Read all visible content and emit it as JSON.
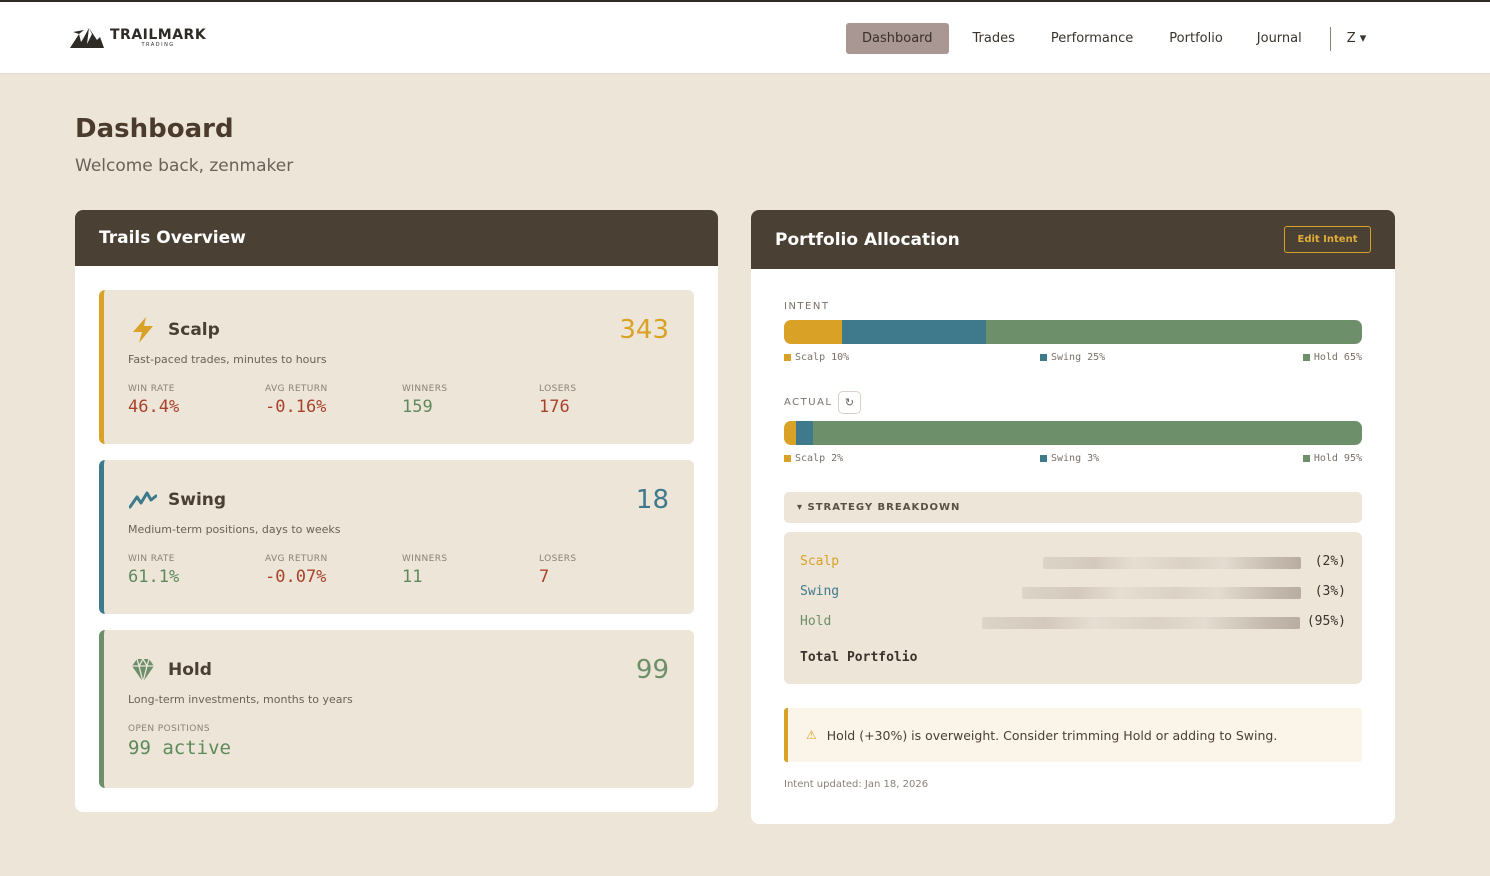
{
  "brand": {
    "name": "TRAILMARK",
    "sub": "TRADING"
  },
  "nav": {
    "items": [
      {
        "label": "Dashboard",
        "active": true
      },
      {
        "label": "Trades"
      },
      {
        "label": "Performance"
      },
      {
        "label": "Portfolio"
      },
      {
        "label": "Journal"
      }
    ],
    "user_label": "Z ▾"
  },
  "page": {
    "title": "Dashboard",
    "welcome": "Welcome back, zenmaker"
  },
  "trails": {
    "title": "Trails Overview",
    "scalp": {
      "name": "Scalp",
      "count": "343",
      "desc": "Fast-paced trades, minutes to hours",
      "win_rate_label": "WIN RATE",
      "win_rate": "46.4%",
      "avg_return_label": "AVG RETURN",
      "avg_return": "-0.16%",
      "winners_label": "WINNERS",
      "winners": "159",
      "losers_label": "LOSERS",
      "losers": "176",
      "icon": "lightning-icon",
      "color": "#d9a126"
    },
    "swing": {
      "name": "Swing",
      "count": "18",
      "desc": "Medium-term positions, days to weeks",
      "win_rate_label": "WIN RATE",
      "win_rate": "61.1%",
      "avg_return_label": "AVG RETURN",
      "avg_return": "-0.07%",
      "winners_label": "WINNERS",
      "winners": "11",
      "losers_label": "LOSERS",
      "losers": "7",
      "icon": "zigzag-chart-icon",
      "color": "#3f7a8c"
    },
    "hold": {
      "name": "Hold",
      "count": "99",
      "desc": "Long-term investments, months to years",
      "open_label": "OPEN POSITIONS",
      "open_value": "99 active",
      "icon": "diamond-icon",
      "color": "#6d8f69"
    }
  },
  "allocation": {
    "title": "Portfolio Allocation",
    "edit_label": "Edit Intent",
    "intent_label": "INTENT",
    "actual_label": "ACTUAL",
    "refresh_icon": "refresh-icon",
    "intent": {
      "scalp": {
        "label": "Scalp 10%",
        "value": 10
      },
      "swing": {
        "label": "Swing 25%",
        "value": 25
      },
      "hold": {
        "label": "Hold 65%",
        "value": 65
      }
    },
    "actual": {
      "scalp": {
        "label": "Scalp 2%",
        "value": 2
      },
      "swing": {
        "label": "Swing 3%",
        "value": 3
      },
      "hold": {
        "label": "Hold 95%",
        "value": 95
      }
    },
    "colors": {
      "scalp": "#d9a126",
      "swing": "#3f7a8c",
      "hold": "#6d8f69"
    },
    "breakdown": {
      "toggle_label": "▾ STRATEGY BREAKDOWN",
      "rows": [
        {
          "name": "Scalp",
          "pct": "(2%)"
        },
        {
          "name": "Swing",
          "pct": "(3%)"
        },
        {
          "name": "Hold",
          "pct": "(95%)"
        }
      ],
      "total_label": "Total Portfolio"
    },
    "warning": "Hold (+30%) is overweight. Consider trimming Hold or adding to Swing.",
    "updated": "Intent updated: Jan 18, 2026"
  }
}
